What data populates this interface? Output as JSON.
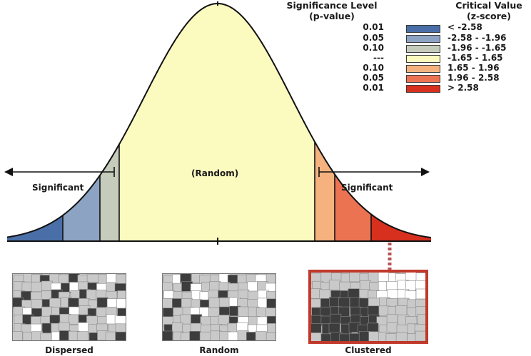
{
  "legend": {
    "significance_header": [
      "Significance Level",
      "(p-value)"
    ],
    "critical_header": [
      "Critical Value",
      "(z-score)"
    ],
    "rows": [
      {
        "p": "0.01",
        "z": "< -2.58",
        "color": "#4a6fa8"
      },
      {
        "p": "0.05",
        "z": "-2.58 - -1.96",
        "color": "#8da3c4"
      },
      {
        "p": "0.10",
        "z": "-1.96 - -1.65",
        "color": "#c6ccbb"
      },
      {
        "p": "---",
        "z": "-1.65 - 1.65",
        "color": "#fcfbbf"
      },
      {
        "p": "0.10",
        "z": "1.65 - 1.96",
        "color": "#f5b27e"
      },
      {
        "p": "0.05",
        "z": "1.96 - 2.58",
        "color": "#ec7352"
      },
      {
        "p": "0.01",
        "z": "> 2.58",
        "color": "#d7301f"
      }
    ]
  },
  "curve_labels": {
    "random": "(Random)",
    "left_significant": "Significant",
    "right_significant": "Significant"
  },
  "patterns": [
    {
      "label": "Dispersed",
      "highlighted": false
    },
    {
      "label": "Random",
      "highlighted": false
    },
    {
      "label": "Clustered",
      "highlighted": true,
      "highlight_color": "#c0392b"
    }
  ]
}
